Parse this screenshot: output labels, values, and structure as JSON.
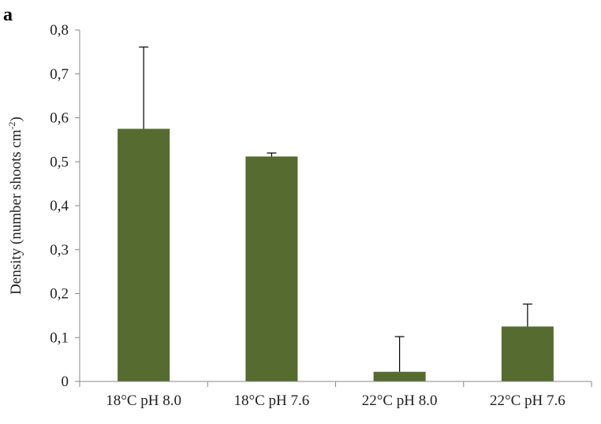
{
  "panel_label": "a",
  "chart_data": {
    "type": "bar",
    "title": "",
    "xlabel": "",
    "ylabel_main": "Density (number shoots cm",
    "ylabel_sup": "-2",
    "ylabel_end": ")",
    "categories": [
      "18°C pH 8.0",
      "18°C pH 7.6",
      "22°C pH 8.0",
      "22°C pH 7.6"
    ],
    "values": [
      0.575,
      0.512,
      0.022,
      0.125
    ],
    "error_upper": [
      0.186,
      0.008,
      0.08,
      0.051
    ],
    "ylim": [
      0,
      0.8
    ],
    "ytick_values": [
      0,
      0.1,
      0.2,
      0.3,
      0.4,
      0.5,
      0.6,
      0.7,
      0.8
    ],
    "ytick_labels": [
      "0",
      "0,1",
      "0,2",
      "0,3",
      "0,4",
      "0,5",
      "0,6",
      "0,7",
      "0,8"
    ],
    "grid": false,
    "colors": {
      "bar": "#556b2f",
      "axis": "#888888",
      "error": "#000000"
    }
  }
}
